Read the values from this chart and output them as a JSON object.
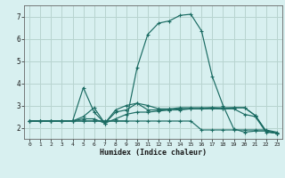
{
  "xlabel": "Humidex (Indice chaleur)",
  "background_color": "#d8f0f0",
  "grid_color": "#b8d4d0",
  "line_color": "#1a6b62",
  "xlim": [
    -0.5,
    23.5
  ],
  "ylim": [
    1.5,
    7.5
  ],
  "yticks": [
    2,
    3,
    4,
    5,
    6,
    7
  ],
  "xticks": [
    0,
    1,
    2,
    3,
    4,
    5,
    6,
    7,
    8,
    9,
    10,
    11,
    12,
    13,
    14,
    15,
    16,
    17,
    18,
    19,
    20,
    21,
    22,
    23
  ],
  "series": [
    [
      2.3,
      2.3,
      2.3,
      2.3,
      2.3,
      2.3,
      2.3,
      2.3,
      2.3,
      2.3,
      2.3,
      2.3,
      2.3,
      2.3,
      2.3,
      2.3,
      1.9,
      1.9,
      1.9,
      1.9,
      1.9,
      1.9,
      1.9,
      1.8
    ],
    [
      2.3,
      2.3,
      2.3,
      2.3,
      2.3,
      2.4,
      2.4,
      2.2,
      2.4,
      2.6,
      2.7,
      2.7,
      2.75,
      2.8,
      2.8,
      2.85,
      2.85,
      2.85,
      2.85,
      2.85,
      2.6,
      2.5,
      1.8,
      1.75
    ],
    [
      2.3,
      2.3,
      2.3,
      2.3,
      2.3,
      2.5,
      2.9,
      2.2,
      2.7,
      2.8,
      3.1,
      2.8,
      2.8,
      2.8,
      2.85,
      2.85,
      2.85,
      2.9,
      2.85,
      2.9,
      2.9,
      2.55,
      1.85,
      1.75
    ],
    [
      2.3,
      2.3,
      2.3,
      2.3,
      2.3,
      3.8,
      2.7,
      2.2,
      2.8,
      3.0,
      3.1,
      3.0,
      2.85,
      2.85,
      2.9,
      2.9,
      2.9,
      2.9,
      2.9,
      2.9,
      2.9,
      2.55,
      1.85,
      1.75
    ],
    [
      2.3,
      2.3,
      2.3,
      2.3,
      2.3,
      2.3,
      2.3,
      2.3,
      2.3,
      2.3,
      4.7,
      6.2,
      6.7,
      6.8,
      7.05,
      7.1,
      6.35,
      4.3,
      3.0,
      1.95,
      1.8,
      1.85,
      1.85,
      1.75
    ]
  ]
}
